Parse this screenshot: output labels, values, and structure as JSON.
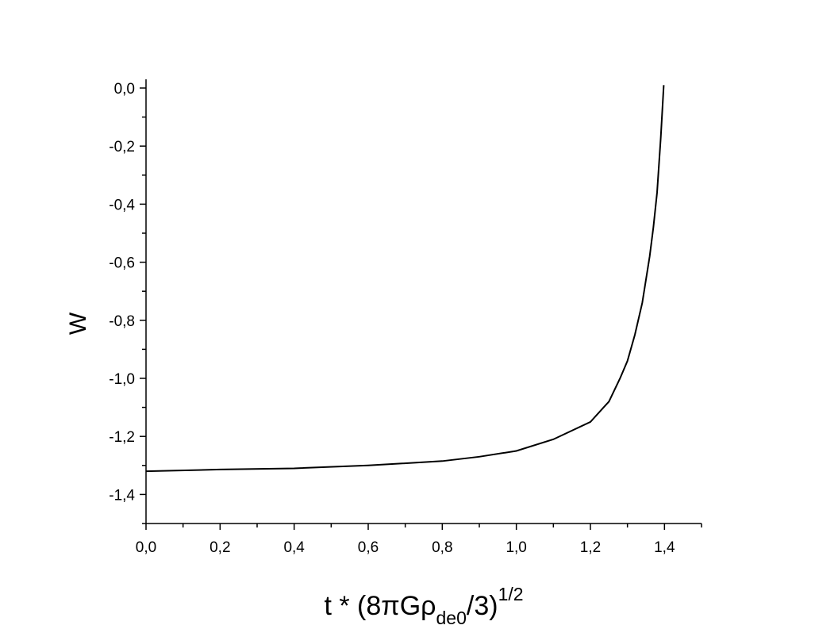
{
  "chart_data": {
    "type": "line",
    "xlabel": {
      "main": "t * (8πGρ",
      "sub": "de0",
      "rest": "/3)",
      "sup": "1/2"
    },
    "ylabel": "W",
    "x": [
      0,
      0.2,
      0.4,
      0.6,
      0.8,
      0.9,
      1.0,
      1.1,
      1.2,
      1.25,
      1.28,
      1.3,
      1.32,
      1.34,
      1.36,
      1.37,
      1.38,
      1.39,
      1.398
    ],
    "series": [
      {
        "color": "#000000",
        "values": [
          -1.32,
          -1.314,
          -1.31,
          -1.3,
          -1.285,
          -1.27,
          -1.25,
          -1.21,
          -1.15,
          -1.08,
          -1.0,
          -0.94,
          -0.85,
          -0.74,
          -0.58,
          -0.48,
          -0.36,
          -0.17,
          0.01
        ]
      }
    ],
    "xlim": [
      0,
      1.5
    ],
    "ylim": [
      -1.5,
      0.03
    ],
    "xticks": [
      {
        "value": 0,
        "label": "0,0"
      },
      {
        "value": 0.2,
        "label": "0,2"
      },
      {
        "value": 0.4,
        "label": "0,4"
      },
      {
        "value": 0.6,
        "label": "0,6"
      },
      {
        "value": 0.8,
        "label": "0,8"
      },
      {
        "value": 1.0,
        "label": "1,0"
      },
      {
        "value": 1.2,
        "label": "1,2"
      },
      {
        "value": 1.4,
        "label": "1,4"
      }
    ],
    "yticks": [
      {
        "value": -1.4,
        "label": "-1,4"
      },
      {
        "value": -1.2,
        "label": "-1,2"
      },
      {
        "value": -1.0,
        "label": "-1,0"
      },
      {
        "value": -0.8,
        "label": "-0,8"
      },
      {
        "value": -0.6,
        "label": "-0,6"
      },
      {
        "value": -0.4,
        "label": "-0,4"
      },
      {
        "value": -0.2,
        "label": "-0,2"
      },
      {
        "value": 0,
        "label": "0,0"
      }
    ],
    "xminorticks": [
      0.1,
      0.3,
      0.5,
      0.7,
      0.9,
      1.1,
      1.3,
      1.5
    ],
    "yminorticks": [
      -1.5,
      -1.3,
      -1.1,
      -0.9,
      -0.7,
      -0.5,
      -0.3,
      -0.1
    ],
    "grid": false
  }
}
